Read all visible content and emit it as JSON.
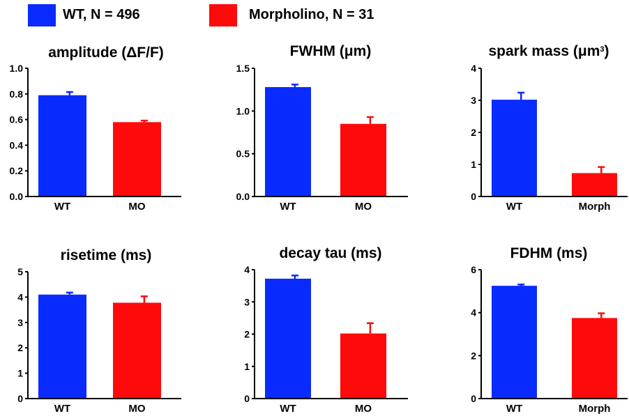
{
  "legend": [
    {
      "label": "WT, N = 496",
      "color": "#0a2bff"
    },
    {
      "label": "Morpholino, N = 31",
      "color": "#ff0a0a"
    }
  ],
  "chart_data": [
    {
      "type": "bar",
      "title": "amplitude (ΔF/F)",
      "categories": [
        "WT",
        "MO"
      ],
      "values": [
        0.79,
        0.58
      ],
      "errors": [
        0.025,
        0.012
      ],
      "colors": [
        "#0a2bff",
        "#ff0a0a"
      ],
      "ylim": [
        0,
        1.0
      ],
      "yticks": [
        "0.0",
        "0.2",
        "0.4",
        "0.6",
        "0.8",
        "1.0"
      ],
      "ytick_values": [
        0,
        0.2,
        0.4,
        0.6,
        0.8,
        1.0
      ]
    },
    {
      "type": "bar",
      "title": "FWHM (μm)",
      "categories": [
        "WT",
        "MO"
      ],
      "values": [
        1.28,
        0.85
      ],
      "errors": [
        0.03,
        0.08
      ],
      "colors": [
        "#0a2bff",
        "#ff0a0a"
      ],
      "ylim": [
        0,
        1.5
      ],
      "yticks": [
        "0.0",
        "0.5",
        "1.0",
        "1.5"
      ],
      "ytick_values": [
        0,
        0.5,
        1.0,
        1.5
      ]
    },
    {
      "type": "bar",
      "title": "spark mass (μm",
      "title_superscript": "3",
      "title_suffix": ")",
      "categories": [
        "WT",
        "Morph"
      ],
      "values": [
        3.02,
        0.73
      ],
      "errors": [
        0.22,
        0.19
      ],
      "colors": [
        "#0a2bff",
        "#ff0a0a"
      ],
      "ylim": [
        0,
        4
      ],
      "yticks": [
        "0",
        "1",
        "2",
        "3",
        "4"
      ],
      "ytick_values": [
        0,
        1,
        2,
        3,
        4
      ]
    },
    {
      "type": "bar",
      "title": "risetime (ms)",
      "categories": [
        "WT",
        "MO"
      ],
      "values": [
        4.1,
        3.78
      ],
      "errors": [
        0.08,
        0.25
      ],
      "colors": [
        "#0a2bff",
        "#ff0a0a"
      ],
      "ylim": [
        0,
        5
      ],
      "yticks": [
        "0",
        "1",
        "2",
        "3",
        "4",
        "5"
      ],
      "ytick_values": [
        0,
        1,
        2,
        3,
        4,
        5
      ]
    },
    {
      "type": "bar",
      "title": "decay tau (ms)",
      "categories": [
        "WT",
        "MO"
      ],
      "values": [
        3.72,
        2.02
      ],
      "errors": [
        0.1,
        0.32
      ],
      "colors": [
        "#0a2bff",
        "#ff0a0a"
      ],
      "ylim": [
        0,
        4
      ],
      "yticks": [
        "0",
        "1",
        "2",
        "3",
        "4"
      ],
      "ytick_values": [
        0,
        1,
        2,
        3,
        4
      ]
    },
    {
      "type": "bar",
      "title": "FDHM (ms)",
      "categories": [
        "WT",
        "Morph"
      ],
      "values": [
        5.25,
        3.75
      ],
      "errors": [
        0.06,
        0.22
      ],
      "colors": [
        "#0a2bff",
        "#ff0a0a"
      ],
      "ylim": [
        0,
        6
      ],
      "yticks": [
        "0",
        "2",
        "4",
        "6"
      ],
      "ytick_values": [
        0,
        2,
        4,
        6
      ]
    }
  ]
}
